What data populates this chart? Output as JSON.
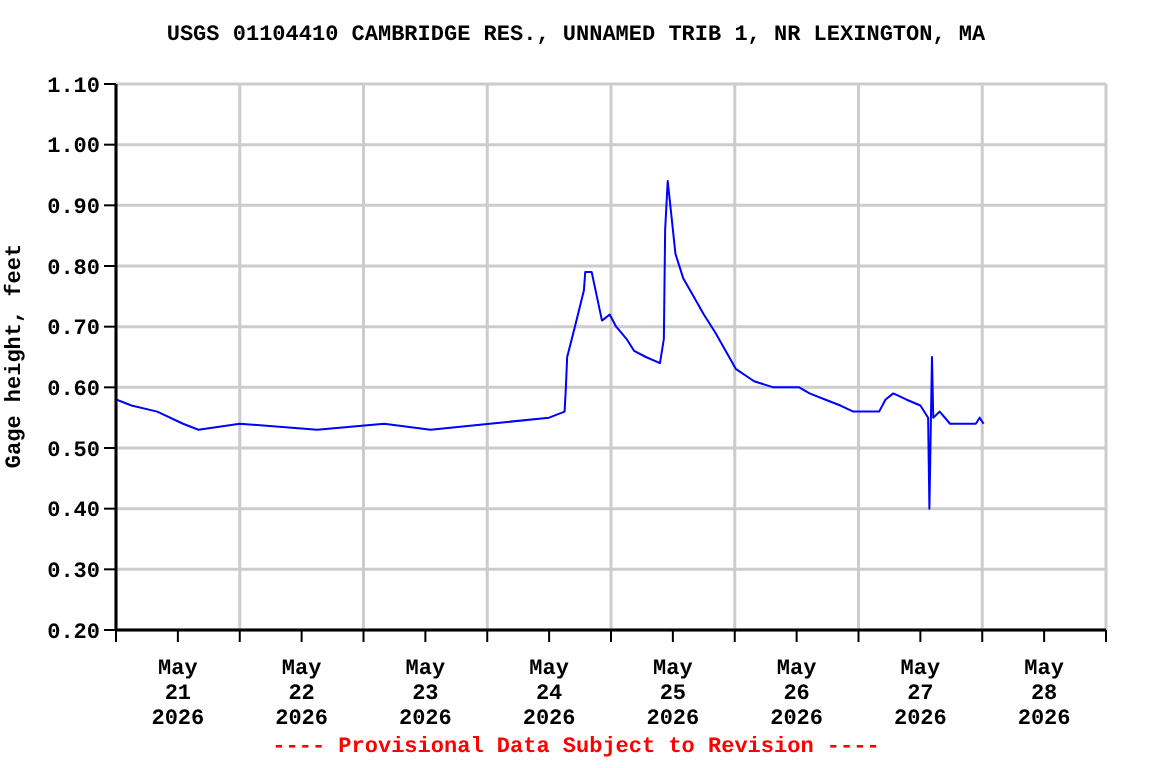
{
  "chart_data": {
    "type": "line",
    "title": "USGS 01104410 CAMBRIDGE RES., UNNAMED TRIB 1, NR LEXINGTON, MA",
    "ylabel": "Gage height, feet",
    "annotations": [
      "---- Provisional Data Subject to Revision ----"
    ],
    "x": [
      "2026-05-21T00:00",
      "2026-05-21T03:00",
      "2026-05-21T08:00",
      "2026-05-21T13:00",
      "2026-05-21T16:00",
      "2026-05-22T00:00",
      "2026-05-22T15:00",
      "2026-05-23T04:00",
      "2026-05-23T13:00",
      "2026-05-24T00:30",
      "2026-05-24T12:00",
      "2026-05-24T15:00",
      "2026-05-24T15:15",
      "2026-05-24T15:30",
      "2026-05-24T17:00",
      "2026-05-24T18:45",
      "2026-05-24T19:00",
      "2026-05-24T20:15",
      "2026-05-24T21:30",
      "2026-05-24T22:15",
      "2026-05-24T23:45",
      "2026-05-25T01:00",
      "2026-05-25T03:00",
      "2026-05-25T04:30",
      "2026-05-25T06:45",
      "2026-05-25T09:30",
      "2026-05-25T10:15",
      "2026-05-25T10:30",
      "2026-05-25T11:00",
      "2026-05-25T11:45",
      "2026-05-25T12:30",
      "2026-05-25T14:00",
      "2026-05-25T16:00",
      "2026-05-25T18:00",
      "2026-05-25T20:15",
      "2026-05-25T22:15",
      "2026-05-26T00:15",
      "2026-05-26T03:45",
      "2026-05-26T07:30",
      "2026-05-26T12:30",
      "2026-05-26T14:30",
      "2026-05-26T17:30",
      "2026-05-26T20:30",
      "2026-05-26T23:00",
      "2026-05-27T04:00",
      "2026-05-27T05:15",
      "2026-05-27T06:45",
      "2026-05-27T09:15",
      "2026-05-27T12:00",
      "2026-05-27T13:30",
      "2026-05-27T13:45",
      "2026-05-27T14:15",
      "2026-05-27T14:30",
      "2026-05-27T15:45",
      "2026-05-27T17:45",
      "2026-05-27T22:45",
      "2026-05-27T23:30",
      "2026-05-28T00:15"
    ],
    "series": [
      {
        "color": "#0000ff",
        "values": [
          0.58,
          0.57,
          0.56,
          0.54,
          0.53,
          0.54,
          0.53,
          0.54,
          0.53,
          0.54,
          0.55,
          0.56,
          0.6,
          0.65,
          0.7,
          0.76,
          0.79,
          0.79,
          0.74,
          0.71,
          0.72,
          0.7,
          0.68,
          0.66,
          0.65,
          0.64,
          0.68,
          0.86,
          0.94,
          0.88,
          0.82,
          0.78,
          0.75,
          0.72,
          0.69,
          0.66,
          0.63,
          0.61,
          0.6,
          0.6,
          0.59,
          0.58,
          0.57,
          0.56,
          0.56,
          0.58,
          0.59,
          0.58,
          0.57,
          0.55,
          0.4,
          0.65,
          0.55,
          0.56,
          0.54,
          0.54,
          0.55,
          0.54
        ]
      }
    ],
    "xlim": [
      "2026-05-21T00:00",
      "2026-05-29T00:00"
    ],
    "xticks": [
      {
        "value": "2026-05-21T00:00",
        "label": null
      },
      {
        "value": "2026-05-21T12:00",
        "label": "May\n21\n2026"
      },
      {
        "value": "2026-05-22T00:00",
        "label": null
      },
      {
        "value": "2026-05-22T12:00",
        "label": "May\n22\n2026"
      },
      {
        "value": "2026-05-23T00:00",
        "label": null
      },
      {
        "value": "2026-05-23T12:00",
        "label": "May\n23\n2026"
      },
      {
        "value": "2026-05-24T00:00",
        "label": null
      },
      {
        "value": "2026-05-24T12:00",
        "label": "May\n24\n2026"
      },
      {
        "value": "2026-05-25T00:00",
        "label": null
      },
      {
        "value": "2026-05-25T12:00",
        "label": "May\n25\n2026"
      },
      {
        "value": "2026-05-26T00:00",
        "label": null
      },
      {
        "value": "2026-05-26T12:00",
        "label": "May\n26\n2026"
      },
      {
        "value": "2026-05-27T00:00",
        "label": null
      },
      {
        "value": "2026-05-27T12:00",
        "label": "May\n27\n2026"
      },
      {
        "value": "2026-05-28T00:00",
        "label": null
      },
      {
        "value": "2026-05-28T12:00",
        "label": "May\n28\n2026"
      },
      {
        "value": "2026-05-29T00:00",
        "label": null
      }
    ],
    "ylim": [
      0.2,
      1.1
    ],
    "yticks": [
      {
        "value": 0.2,
        "label": "0.20"
      },
      {
        "value": 0.3,
        "label": "0.30"
      },
      {
        "value": 0.4,
        "label": "0.40"
      },
      {
        "value": 0.5,
        "label": "0.50"
      },
      {
        "value": 0.6,
        "label": "0.60"
      },
      {
        "value": 0.7,
        "label": "0.70"
      },
      {
        "value": 0.8,
        "label": "0.80"
      },
      {
        "value": 0.9,
        "label": "0.90"
      },
      {
        "value": 1.0,
        "label": "1.00"
      },
      {
        "value": 1.1,
        "label": "1.10"
      }
    ],
    "grid": true,
    "marker": "none",
    "line_style": "solid"
  }
}
